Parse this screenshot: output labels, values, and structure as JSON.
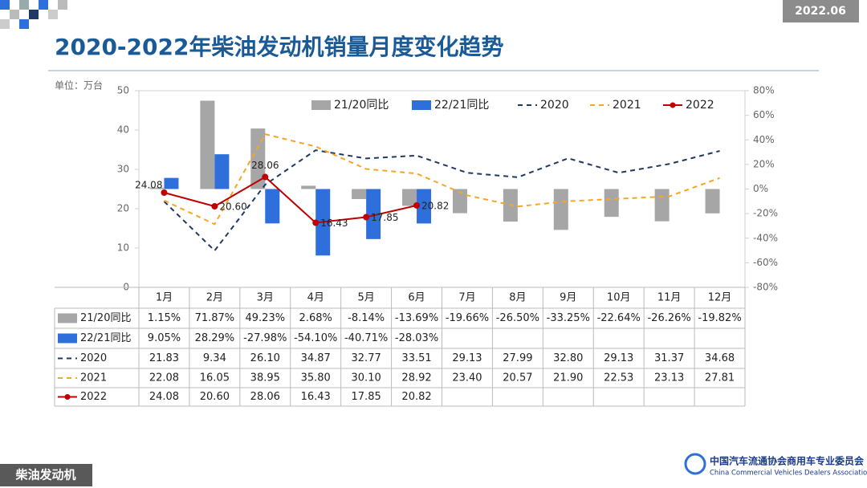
{
  "slide": {
    "date": "2022.06",
    "section": "柴油发动机",
    "org_cn": "中国汽车流通协会商用车专业委员会",
    "org_en": "China Commercial Vehicles Dealers Association"
  },
  "chart_data": {
    "type": "combo",
    "title": "2020-2022年柴油发动机销量月度变化趋势",
    "ylabel": "单位：万台",
    "categories": [
      "1月",
      "2月",
      "3月",
      "4月",
      "5月",
      "6月",
      "7月",
      "8月",
      "9月",
      "10月",
      "11月",
      "12月"
    ],
    "ylim": [
      0,
      50
    ],
    "yticks": [
      0,
      10,
      20,
      30,
      40,
      50
    ],
    "y2lim": [
      -80,
      80
    ],
    "y2ticks": [
      {
        "value": -80,
        "label": "-80%"
      },
      {
        "value": -60,
        "label": "-60%"
      },
      {
        "value": -40,
        "label": "-40%"
      },
      {
        "value": -20,
        "label": "-20%"
      },
      {
        "value": 0,
        "label": "0%"
      },
      {
        "value": 20,
        "label": "20%"
      },
      {
        "value": 40,
        "label": "40%"
      },
      {
        "value": 60,
        "label": "60%"
      },
      {
        "value": 80,
        "label": "80%"
      }
    ],
    "grid": false,
    "legend": "top",
    "series": [
      {
        "name": "21/20同比",
        "type": "bar",
        "axis": "y2",
        "color": "#a6a6a6",
        "values": [
          1.15,
          71.87,
          49.23,
          2.68,
          -8.14,
          -13.69,
          -19.66,
          -26.5,
          -33.25,
          -22.64,
          -26.26,
          -19.82
        ],
        "value_labels": [
          "1.15%",
          "71.87%",
          "49.23%",
          "2.68%",
          "-8.14%",
          "-13.69%",
          "-19.66%",
          "-26.50%",
          "-33.25%",
          "-22.64%",
          "-26.26%",
          "-19.82%"
        ]
      },
      {
        "name": "22/21同比",
        "type": "bar",
        "axis": "y2",
        "color": "#2f6fdc",
        "values": [
          9.05,
          28.29,
          -27.98,
          -54.1,
          -40.71,
          -28.03,
          null,
          null,
          null,
          null,
          null,
          null
        ],
        "value_labels": [
          "9.05%",
          "28.29%",
          "-27.98%",
          "-54.10%",
          "-40.71%",
          "-28.03%",
          null,
          null,
          null,
          null,
          null,
          null
        ]
      },
      {
        "name": "2020",
        "type": "line",
        "color": "#1f3864",
        "dash": true,
        "values": [
          21.83,
          9.34,
          26.1,
          34.87,
          32.77,
          33.51,
          29.13,
          27.99,
          32.8,
          29.13,
          31.37,
          34.68
        ],
        "value_labels": [
          "21.83",
          "9.34",
          "26.10",
          "34.87",
          "32.77",
          "33.51",
          "29.13",
          "27.99",
          "32.80",
          "29.13",
          "31.37",
          "34.68"
        ]
      },
      {
        "name": "2021",
        "type": "line",
        "color": "#f5a623",
        "dash": true,
        "values": [
          22.08,
          16.05,
          38.95,
          35.8,
          30.1,
          28.92,
          23.4,
          20.57,
          21.9,
          22.53,
          23.13,
          27.81
        ],
        "value_labels": [
          "22.08",
          "16.05",
          "38.95",
          "35.80",
          "30.10",
          "28.92",
          "23.40",
          "20.57",
          "21.90",
          "22.53",
          "23.13",
          "27.81"
        ]
      },
      {
        "name": "2022",
        "type": "line",
        "color": "#c00000",
        "dash": false,
        "marker": true,
        "labels": true,
        "values": [
          24.08,
          20.6,
          28.06,
          16.43,
          17.85,
          20.82,
          null,
          null,
          null,
          null,
          null,
          null
        ],
        "value_labels": [
          "24.08",
          "20.60",
          "28.06",
          "16.43",
          "17.85",
          "20.82",
          null,
          null,
          null,
          null,
          null,
          null
        ]
      }
    ]
  }
}
